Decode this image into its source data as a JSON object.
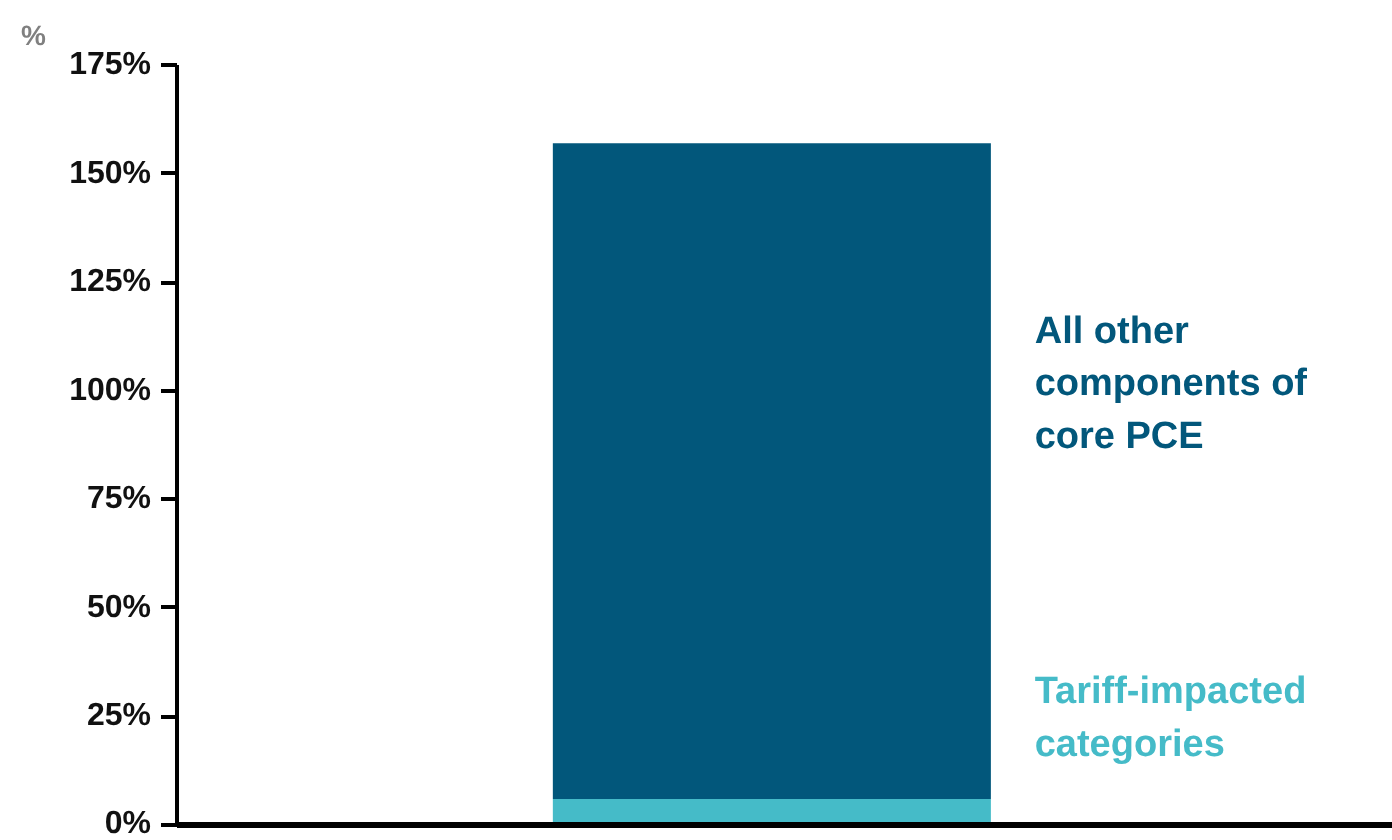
{
  "chart_data": {
    "type": "bar",
    "stacked": true,
    "ylabel": "%",
    "categories": [
      null
    ],
    "series": [
      {
        "name": "Tariff-impacted categories",
        "color": "#45bbc8",
        "values": [
          6
        ]
      },
      {
        "name": "All other components of core PCE",
        "color": "#02577b",
        "values": [
          151
        ]
      }
    ],
    "ylim": [
      0,
      175
    ],
    "yticks": [
      {
        "value": 0,
        "label": "0%"
      },
      {
        "value": 25,
        "label": "25%"
      },
      {
        "value": 50,
        "label": "50%"
      },
      {
        "value": 75,
        "label": "75%"
      },
      {
        "value": 100,
        "label": "100%"
      },
      {
        "value": 125,
        "label": "125%"
      },
      {
        "value": 150,
        "label": "150%"
      },
      {
        "value": 175,
        "label": "175%"
      }
    ],
    "grid": false
  }
}
